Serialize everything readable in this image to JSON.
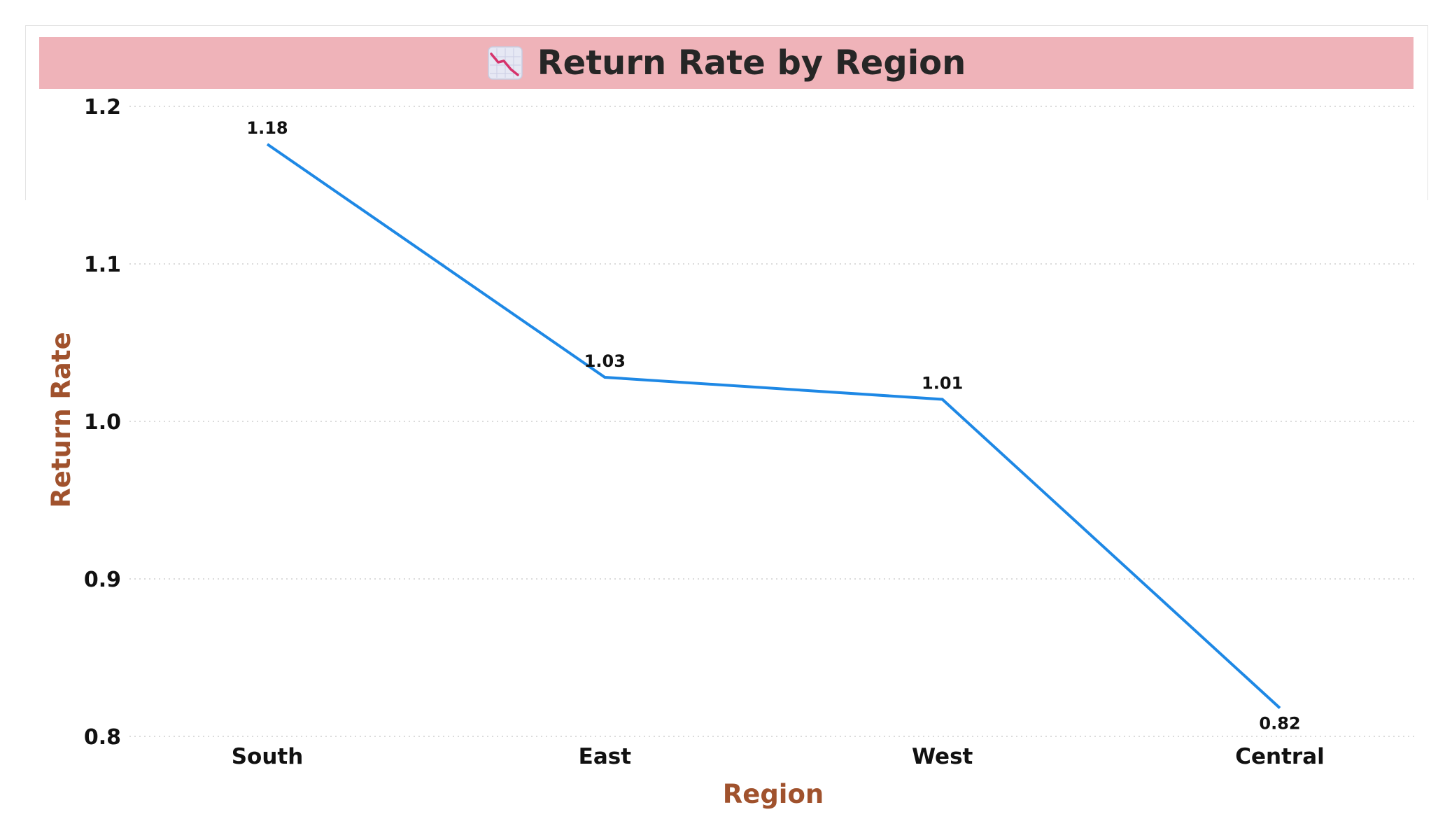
{
  "title": "Return Rate by Region",
  "title_icon": "chart-decreasing-icon",
  "colors": {
    "title_bar": "#efb3b9",
    "line": "#1e88e5",
    "axis_label": "#a0522d",
    "grid": "#cfcfcf",
    "text": "#111111"
  },
  "chart_data": {
    "type": "line",
    "title": "Return Rate by Region",
    "xlabel": "Region",
    "ylabel": "Return Rate",
    "categories": [
      "South",
      "East",
      "West",
      "Central"
    ],
    "series": [
      {
        "values": [
          1.176,
          1.028,
          1.014,
          0.818
        ],
        "labels": [
          "1.18",
          "1.03",
          "1.01",
          "0.82"
        ]
      }
    ],
    "ylim": [
      0.8,
      1.2
    ],
    "yticks": [
      0.8,
      0.9,
      1.0,
      1.1,
      1.2
    ],
    "ytick_labels": [
      "0.8",
      "0.9",
      "1.0",
      "1.1",
      "1.2"
    ],
    "grid": true,
    "legend": "none"
  }
}
